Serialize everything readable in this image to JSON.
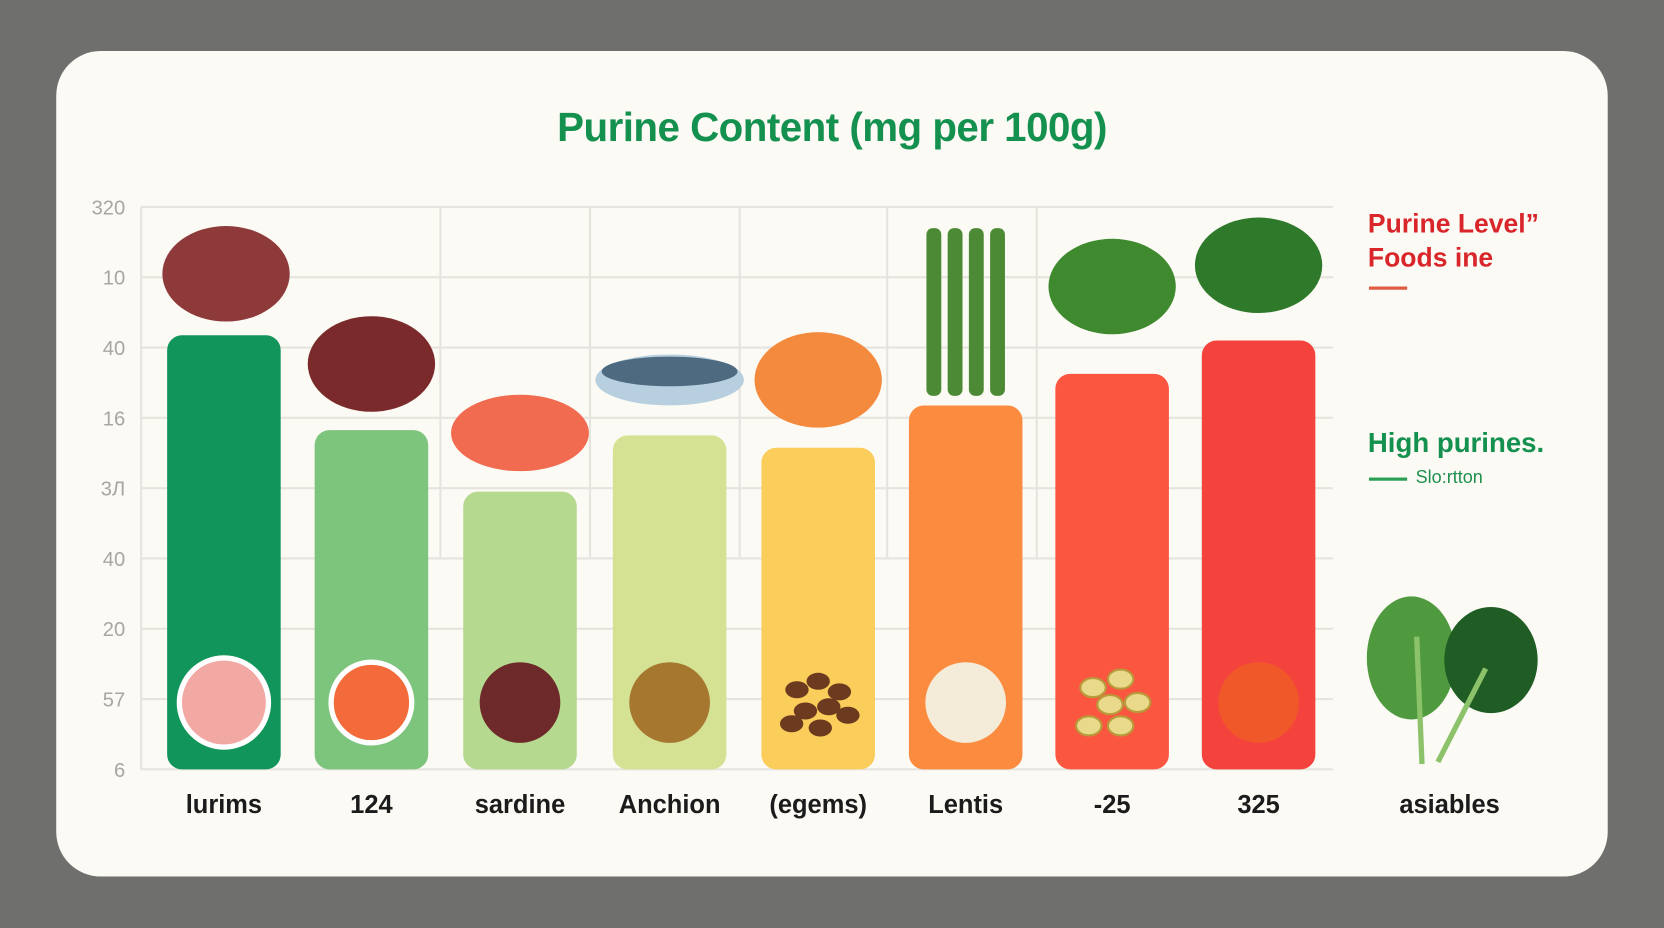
{
  "chart_data": {
    "type": "bar",
    "title": "Purine Content (mg per 100g)",
    "categories": [
      "lurims",
      "124",
      "sardine",
      "Anchion",
      "(egems)",
      "Lentis",
      "-25",
      "325"
    ],
    "values": [
      247,
      193,
      158,
      190,
      183,
      207,
      225,
      244
    ],
    "colors": [
      "#12955a",
      "#7dc47c",
      "#b5d98f",
      "#d5e293",
      "#fbcd5a",
      "#fb8c3f",
      "#fb5640",
      "#f4433c"
    ],
    "icons_top": [
      "liver-icon",
      "kidney-icon",
      "salmon-steak-icon",
      "fish-icon",
      "shrimp-icon",
      "asparagus-icon",
      "broccoli-icon",
      "spinach-icon"
    ],
    "icons_bottom": [
      "grapefruit-icon",
      "orange-icon",
      "plum-icon",
      "kiwi-icon",
      "coffee-beans-icon",
      "egg-icon",
      "seeds-icon",
      "tomato-icon"
    ],
    "extra_category": "asiables",
    "y_tick_labels": [
      "320",
      "10",
      "40",
      "16",
      "3Л",
      "40",
      "20",
      "57",
      "6"
    ],
    "ylim": [
      0,
      320
    ],
    "grid": true,
    "legend_position": "right",
    "legend": [
      {
        "text_lines": [
          "Purine Level”",
          "Foods ine"
        ],
        "color": "#d8262b"
      },
      {
        "text": "High purines.",
        "sub": "Slo:rtton",
        "color": "#14904f"
      }
    ]
  }
}
